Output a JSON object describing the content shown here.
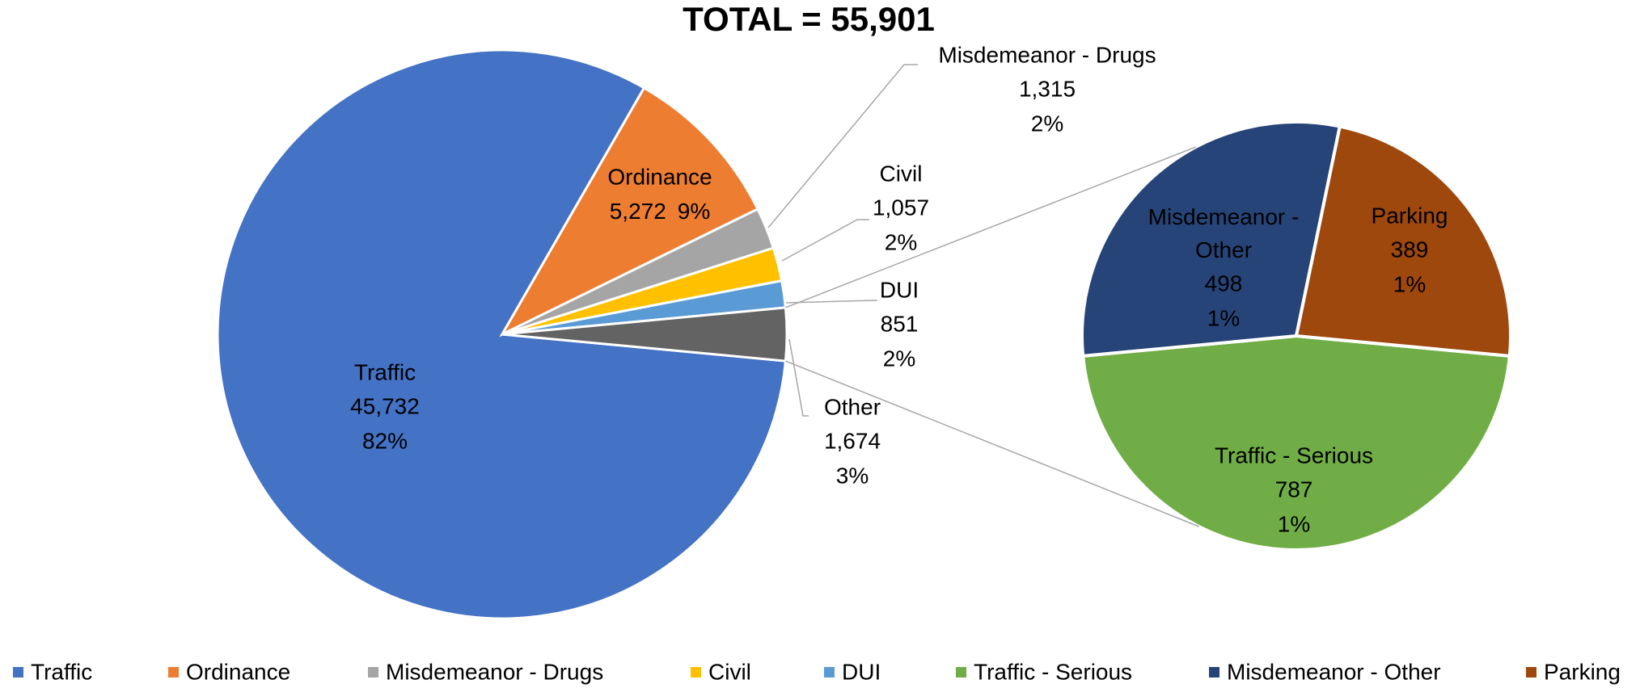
{
  "chart_data": {
    "type": "pie-of-pie",
    "title": "TOTAL = 55,901",
    "main": {
      "categories": [
        "Traffic",
        "Ordinance",
        "Misdemeanor  - Drugs",
        "Civil",
        "DUI",
        "Other"
      ],
      "values": [
        45732,
        5272,
        1315,
        1057,
        851,
        1674
      ],
      "value_labels": [
        "45,732",
        "5,272",
        "1,315",
        "1,057",
        "851",
        "1,674"
      ],
      "percents": [
        82,
        9,
        2,
        2,
        2,
        3
      ],
      "percent_labels": [
        "82%",
        "9%",
        "2%",
        "2%",
        "2%",
        "3%"
      ],
      "colors": [
        "#4472c4",
        "#ed7d31",
        "#a5a5a5",
        "#ffc000",
        "#5b9bd5",
        "#636363"
      ]
    },
    "secondary": {
      "categories": [
        "Traffic - Serious",
        "Misdemeanor - Other",
        "Parking"
      ],
      "values": [
        787,
        498,
        389
      ],
      "value_labels": [
        "787",
        "498",
        "389"
      ],
      "percents": [
        1,
        1,
        1
      ],
      "percent_labels": [
        "1%",
        "1%",
        "1%"
      ],
      "colors": [
        "#70ad47",
        "#264478",
        "#9e480e"
      ]
    },
    "legend": "bottom"
  }
}
